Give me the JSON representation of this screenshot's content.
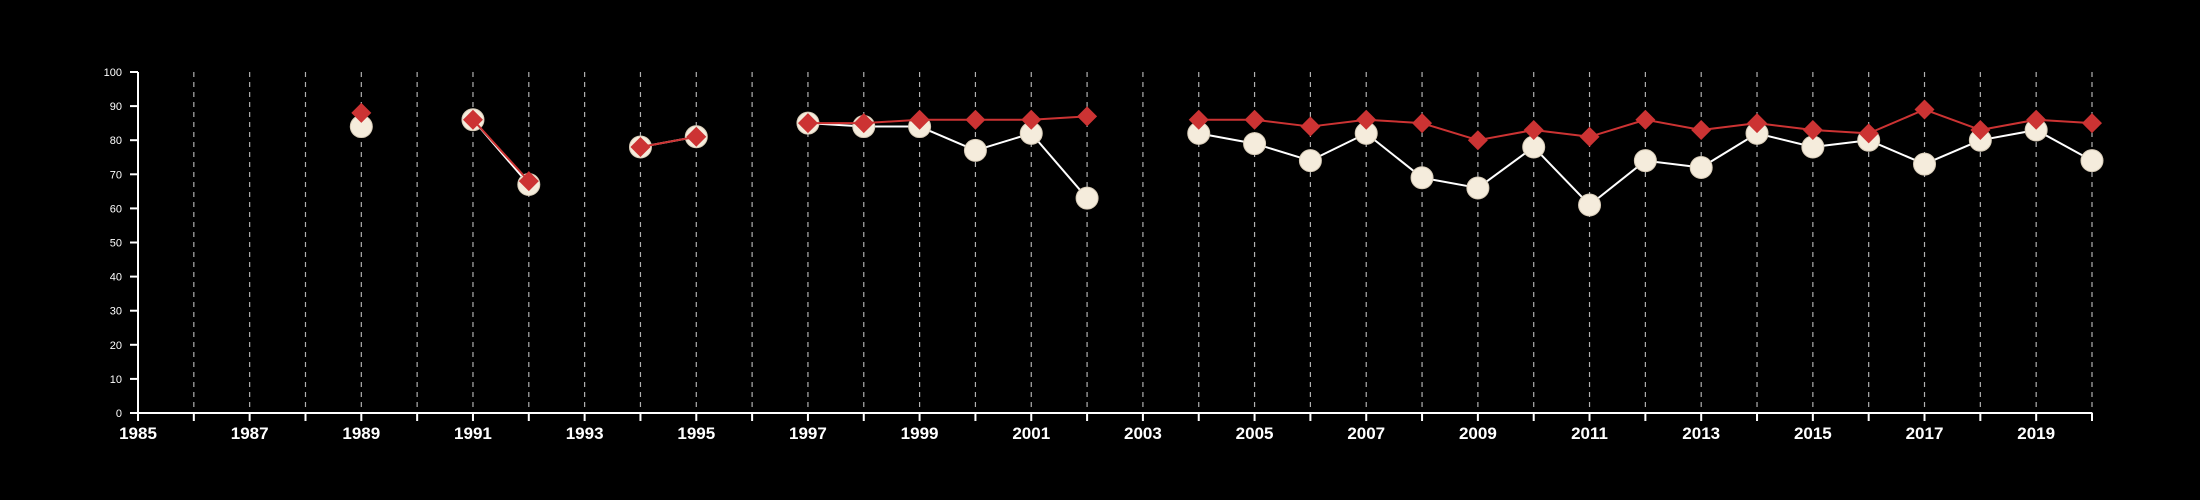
{
  "chart_data": {
    "type": "line",
    "title": "",
    "xlabel": "",
    "ylabel": "",
    "xlim": [
      1985,
      2020
    ],
    "ylim": [
      0,
      100
    ],
    "x_ticks": [
      1985,
      1986,
      1987,
      1988,
      1989,
      1990,
      1991,
      1992,
      1993,
      1994,
      1995,
      1996,
      1997,
      1998,
      1999,
      2000,
      2001,
      2002,
      2003,
      2004,
      2005,
      2006,
      2007,
      2008,
      2009,
      2010,
      2011,
      2012,
      2013,
      2014,
      2015,
      2016,
      2017,
      2018,
      2019,
      2020
    ],
    "x_tick_labels": [
      "1985",
      "1987",
      "1989",
      "1991",
      "1993",
      "1995",
      "1997",
      "1999",
      "2001",
      "2003",
      "2005",
      "2007",
      "2009",
      "2011",
      "2013",
      "2015",
      "2017",
      "2019"
    ],
    "y_tick_labels": [
      "0",
      "10",
      "20",
      "30",
      "40",
      "50",
      "60",
      "70",
      "80",
      "90",
      "100"
    ],
    "vertical_grid": true,
    "grid_style": "dashed",
    "legend": "none",
    "x": [
      1985,
      1986,
      1987,
      1988,
      1989,
      1990,
      1991,
      1992,
      1993,
      1994,
      1995,
      1996,
      1997,
      1998,
      1999,
      2000,
      2001,
      2002,
      2003,
      2004,
      2005,
      2006,
      2007,
      2008,
      2009,
      2010,
      2011,
      2012,
      2013,
      2014,
      2015,
      2016,
      2017,
      2018,
      2019,
      2020
    ],
    "series": [
      {
        "marker": "circle",
        "color": "#f5ecdc",
        "line_color": "#ffffff",
        "values": [
          null,
          null,
          null,
          null,
          84,
          null,
          86,
          67,
          null,
          78,
          81,
          null,
          85,
          84,
          84,
          77,
          82,
          63,
          null,
          82,
          79,
          74,
          82,
          69,
          66,
          78,
          61,
          74,
          72,
          82,
          78,
          80,
          73,
          80,
          83,
          74
        ]
      },
      {
        "marker": "diamond",
        "color": "#cc3333",
        "line_color": "#cc3333",
        "values": [
          null,
          null,
          null,
          null,
          88,
          null,
          86,
          68,
          null,
          78,
          81,
          null,
          85,
          85,
          86,
          86,
          86,
          87,
          null,
          86,
          86,
          84,
          86,
          85,
          80,
          83,
          81,
          86,
          83,
          85,
          83,
          82,
          89,
          83,
          86,
          85
        ]
      }
    ]
  }
}
